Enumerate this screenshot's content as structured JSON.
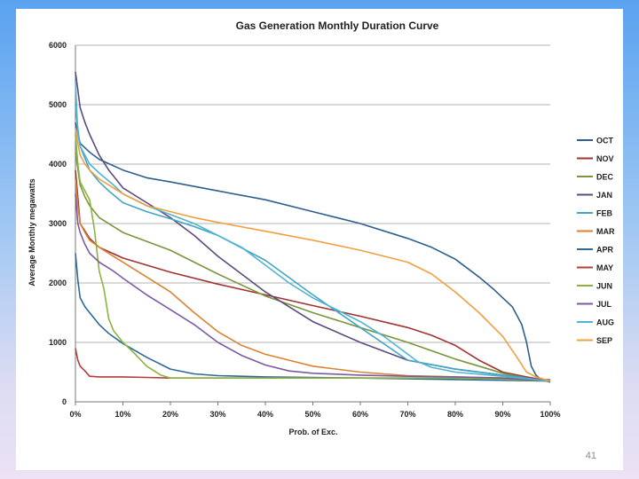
{
  "slide": {
    "page_number": "41"
  },
  "chart_data": {
    "type": "line",
    "title": "Gas Generation Monthly Duration Curve",
    "xlabel": "Prob. of Exc.",
    "ylabel": "Average Monthly megawatts",
    "xlim": [
      0,
      100
    ],
    "ylim": [
      0,
      6000
    ],
    "x_ticks": [
      0,
      10,
      20,
      30,
      40,
      50,
      60,
      70,
      80,
      90,
      100
    ],
    "x_tick_labels": [
      "0%",
      "10%",
      "20%",
      "30%",
      "40%",
      "50%",
      "60%",
      "70%",
      "80%",
      "90%",
      "100%"
    ],
    "y_ticks": [
      0,
      1000,
      2000,
      3000,
      4000,
      5000,
      6000
    ],
    "y_tick_labels": [
      "0",
      "1000",
      "2000",
      "3000",
      "4000",
      "5000",
      "6000"
    ],
    "grid": "horizontal",
    "legend_position": "right",
    "series": [
      {
        "name": "OCT",
        "color": "#2e5f8f",
        "x": [
          0,
          1,
          3,
          5,
          10,
          15,
          20,
          30,
          40,
          50,
          60,
          70,
          75,
          80,
          85,
          88,
          90,
          92,
          94,
          95,
          96,
          97,
          98,
          100
        ],
        "y": [
          4700,
          4350,
          4200,
          4080,
          3900,
          3770,
          3700,
          3550,
          3400,
          3200,
          3000,
          2750,
          2600,
          2400,
          2100,
          1900,
          1750,
          1600,
          1300,
          1000,
          600,
          450,
          380,
          330
        ]
      },
      {
        "name": "NOV",
        "color": "#a03232",
        "x": [
          0,
          1,
          3,
          5,
          10,
          20,
          30,
          40,
          50,
          60,
          70,
          75,
          80,
          85,
          90,
          95,
          100
        ],
        "y": [
          3900,
          3000,
          2750,
          2600,
          2420,
          2180,
          1980,
          1800,
          1620,
          1440,
          1250,
          1120,
          950,
          700,
          500,
          420,
          350
        ]
      },
      {
        "name": "DEC",
        "color": "#78963c",
        "x": [
          0,
          1,
          2,
          3,
          5,
          10,
          20,
          30,
          40,
          50,
          60,
          70,
          80,
          90,
          95,
          100
        ],
        "y": [
          4200,
          3650,
          3450,
          3300,
          3100,
          2850,
          2550,
          2150,
          1780,
          1500,
          1250,
          1000,
          720,
          480,
          400,
          350
        ]
      },
      {
        "name": "JAN",
        "color": "#5c4a7c",
        "x": [
          0,
          0.5,
          1,
          2,
          3,
          5,
          7,
          10,
          15,
          20,
          25,
          30,
          40,
          50,
          60,
          70,
          80,
          90,
          95,
          100
        ],
        "y": [
          5550,
          5250,
          4950,
          4700,
          4500,
          4150,
          3900,
          3600,
          3350,
          3100,
          2800,
          2450,
          1850,
          1350,
          1000,
          700,
          550,
          450,
          400,
          350
        ]
      },
      {
        "name": "FEB",
        "color": "#41a5c5",
        "x": [
          0,
          0.5,
          1,
          2,
          3,
          5,
          7,
          10,
          15,
          20,
          25,
          30,
          40,
          50,
          60,
          70,
          80,
          90,
          100
        ],
        "y": [
          5000,
          4600,
          4300,
          4100,
          3900,
          3700,
          3550,
          3350,
          3200,
          3080,
          2950,
          2800,
          2380,
          1800,
          1250,
          700,
          550,
          450,
          350
        ]
      },
      {
        "name": "MAR",
        "color": "#dc8232",
        "x": [
          0,
          0.5,
          1,
          2,
          3,
          5,
          8,
          10,
          15,
          20,
          25,
          30,
          35,
          40,
          45,
          50,
          60,
          70,
          80,
          90,
          100
        ],
        "y": [
          3750,
          3300,
          3000,
          2850,
          2720,
          2600,
          2450,
          2350,
          2100,
          1850,
          1500,
          1180,
          950,
          800,
          700,
          600,
          500,
          440,
          420,
          400,
          350
        ]
      },
      {
        "name": "APR",
        "color": "#2a6a9a",
        "x": [
          0,
          0.5,
          1,
          2,
          3,
          5,
          7,
          10,
          15,
          20,
          25,
          30,
          40,
          50,
          60,
          100
        ],
        "y": [
          2500,
          2050,
          1750,
          1600,
          1500,
          1300,
          1150,
          980,
          750,
          550,
          470,
          440,
          420,
          410,
          400,
          350
        ]
      },
      {
        "name": "MAY",
        "color": "#b43c3c",
        "x": [
          0,
          0.5,
          1,
          2,
          3,
          5,
          10,
          15,
          20,
          30,
          40,
          50,
          60,
          70,
          80,
          90,
          100
        ],
        "y": [
          900,
          700,
          600,
          520,
          430,
          420,
          420,
          410,
          400,
          400,
          400,
          400,
          400,
          400,
          400,
          400,
          370
        ]
      },
      {
        "name": "JUN",
        "color": "#8cb43c",
        "x": [
          0,
          0.5,
          1,
          2,
          3,
          4,
          5,
          6,
          7,
          8,
          10,
          12,
          15,
          18,
          20,
          25,
          30,
          40,
          50,
          60,
          70,
          80,
          90,
          100
        ],
        "y": [
          4500,
          4000,
          3700,
          3550,
          3400,
          2900,
          2200,
          1900,
          1400,
          1200,
          1000,
          850,
          600,
          450,
          400,
          400,
          400,
          400,
          400,
          400,
          400,
          400,
          380,
          350
        ]
      },
      {
        "name": "JUL",
        "color": "#7a5aa0",
        "x": [
          0,
          0.5,
          1,
          2,
          3,
          5,
          8,
          10,
          15,
          20,
          25,
          30,
          35,
          40,
          45,
          50,
          60,
          70,
          80,
          90,
          100
        ],
        "y": [
          3500,
          3000,
          2850,
          2650,
          2500,
          2350,
          2200,
          2080,
          1800,
          1550,
          1300,
          1000,
          780,
          620,
          520,
          480,
          450,
          430,
          420,
          400,
          350
        ]
      },
      {
        "name": "AUG",
        "color": "#50b4d2",
        "x": [
          0,
          0.5,
          1,
          2,
          3,
          5,
          8,
          10,
          15,
          20,
          25,
          30,
          35,
          40,
          45,
          50,
          55,
          60,
          65,
          70,
          72,
          75,
          80,
          90,
          100
        ],
        "y": [
          5400,
          4500,
          4300,
          4150,
          4000,
          3850,
          3650,
          3500,
          3300,
          3150,
          3000,
          2800,
          2600,
          2300,
          2000,
          1750,
          1550,
          1350,
          1100,
          800,
          680,
          580,
          500,
          430,
          350
        ]
      },
      {
        "name": "SEP",
        "color": "#f0a040",
        "x": [
          0,
          0.5,
          1,
          2,
          3,
          5,
          8,
          10,
          15,
          20,
          25,
          30,
          40,
          50,
          60,
          70,
          75,
          80,
          85,
          90,
          93,
          95,
          97,
          100
        ],
        "y": [
          4600,
          4350,
          4150,
          4000,
          3900,
          3750,
          3600,
          3500,
          3300,
          3200,
          3100,
          3020,
          2870,
          2720,
          2550,
          2350,
          2150,
          1850,
          1500,
          1100,
          750,
          500,
          420,
          350
        ]
      }
    ]
  }
}
